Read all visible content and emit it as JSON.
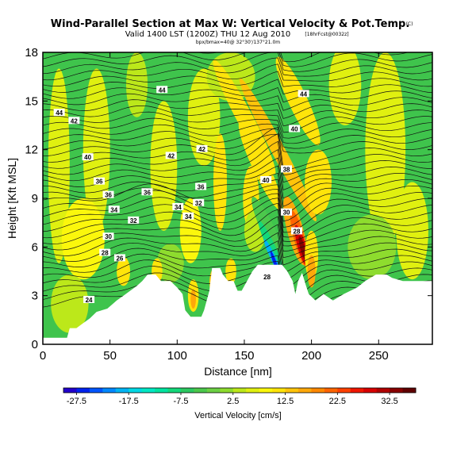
{
  "chart_data": {
    "type": "heatmap",
    "title": "Wind-Parallel Section at Max W: Vertical Velocity & Pot.Temp.",
    "title_mark": "(C)",
    "subtitle": "Valid 1400 LST (1200Z) THU 12 Aug 2010",
    "subtitle_right": "[18hrFcst@0032z]",
    "subtitle_small": "bpx/bmax=40@ 32°30'/137°21.0m",
    "xlabel": "Distance [nm]",
    "ylabel": "Height [Kft MSL]",
    "xlim": [
      0,
      290
    ],
    "ylim": [
      0,
      18
    ],
    "xticks": [
      0,
      50,
      100,
      150,
      200,
      250
    ],
    "yticks": [
      0,
      3,
      6,
      9,
      12,
      15,
      18
    ],
    "colorbar": {
      "label": "Vertical Velocity [cm/s]",
      "ticks": [
        "-27.5",
        "-17.5",
        "-7.5",
        "2.5",
        "12.5",
        "22.5",
        "32.5"
      ],
      "min": -30,
      "max": 37.5,
      "step": 2.5,
      "colors": [
        "#2200cc",
        "#0022ee",
        "#0055ff",
        "#0088ff",
        "#00b4f4",
        "#00d8e4",
        "#00e8c4",
        "#00e4a0",
        "#14d87a",
        "#2cc860",
        "#4cc84c",
        "#6cd044",
        "#8edc2e",
        "#bce81a",
        "#e0f010",
        "#fbf70c",
        "#ffe40a",
        "#ffc40a",
        "#ffa80a",
        "#ff8800",
        "#ff6400",
        "#ff4000",
        "#f01600",
        "#d80000",
        "#b00000",
        "#880000",
        "#600000"
      ]
    },
    "theta_contour_labels": [
      "24",
      "26",
      "28",
      "28",
      "28",
      "30",
      "30",
      "32",
      "32",
      "34",
      "34",
      "34",
      "36",
      "36",
      "36",
      "36",
      "38",
      "40",
      "40",
      "40",
      "42",
      "42",
      "42",
      "44",
      "44",
      "44"
    ],
    "theta_range": [
      24,
      44
    ],
    "terrain_ridges": [
      {
        "x": 80,
        "top": 4.3
      },
      {
        "x": 125,
        "top": 4.7
      },
      {
        "x": 170,
        "top": 4.9
      },
      {
        "x": 247,
        "top": 3.5
      },
      {
        "x": 290,
        "top": 3.9
      }
    ],
    "updraft_max_cm_s": 35,
    "updraft_max_at": {
      "x": 193,
      "height": 6.0
    },
    "downdraft_min_cm_s": -27.5,
    "downdraft_min_at": {
      "x": 172,
      "height": 5.5
    }
  }
}
